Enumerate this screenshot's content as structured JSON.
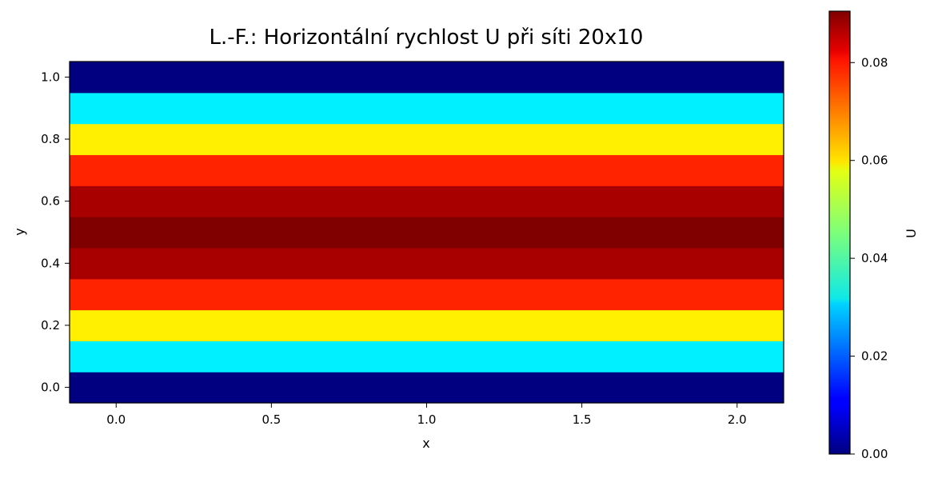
{
  "chart_data": {
    "type": "heatmap",
    "title": "L.-F.: Horizontální rychlost U při síti 20x10",
    "xlabel": "x",
    "ylabel": "y",
    "colorbar_label": "U",
    "colormap": "jet",
    "xlim": [
      -0.15,
      2.15
    ],
    "ylim": [
      -0.05,
      1.05
    ],
    "clim": [
      0.0,
      0.0905
    ],
    "x_ticks": [
      0.0,
      0.5,
      1.0,
      1.5,
      2.0
    ],
    "x_tick_labels": [
      "0.0",
      "0.5",
      "1.0",
      "1.5",
      "2.0"
    ],
    "y_ticks": [
      0.0,
      0.2,
      0.4,
      0.6,
      0.8,
      1.0
    ],
    "y_tick_labels": [
      "0.0",
      "0.2",
      "0.4",
      "0.6",
      "0.8",
      "1.0"
    ],
    "colorbar_ticks": [
      0.0,
      0.02,
      0.04,
      0.06,
      0.08
    ],
    "colorbar_tick_labels": [
      "0.00",
      "0.02",
      "0.04",
      "0.06",
      "0.08"
    ],
    "grid": false,
    "rows": [
      {
        "y": 0.0,
        "value": 0.0
      },
      {
        "y": 0.1,
        "value": 0.0326
      },
      {
        "y": 0.2,
        "value": 0.058
      },
      {
        "y": 0.3,
        "value": 0.0761
      },
      {
        "y": 0.4,
        "value": 0.0869
      },
      {
        "y": 0.5,
        "value": 0.0905
      },
      {
        "y": 0.6,
        "value": 0.0869
      },
      {
        "y": 0.7,
        "value": 0.0761
      },
      {
        "y": 0.8,
        "value": 0.058
      },
      {
        "y": 0.9,
        "value": 0.0326
      },
      {
        "y": 1.0,
        "value": 0.0
      }
    ]
  }
}
